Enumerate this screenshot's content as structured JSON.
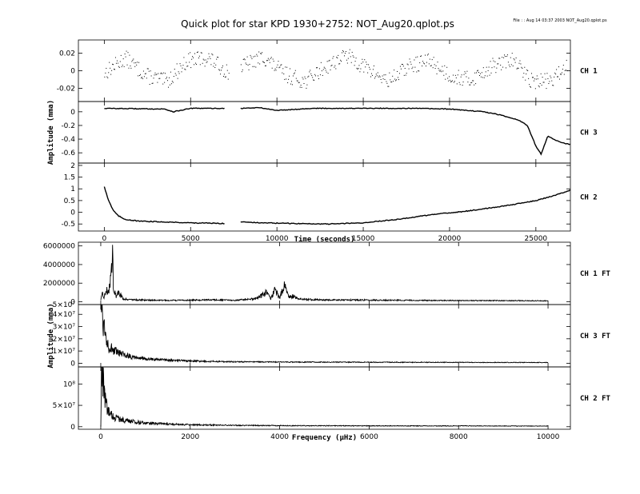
{
  "window": {
    "title": "Quick plot for star KPD 1930+2752:  NOT_Aug20.qplot.ps",
    "file_info": "File : : Aug 14 03:37 2003 NOT_Aug20.qplot.ps"
  },
  "colors": {
    "ink": "#000000",
    "background": "#ffffff"
  },
  "chart_data": [
    {
      "type": "scatter",
      "panel": "CH 1",
      "xlabel": "",
      "ylabel": "",
      "xlim": [
        -1500,
        27000
      ],
      "ylim": [
        -0.035,
        0.035
      ],
      "yticks": [
        -0.02,
        0,
        0.02
      ],
      "ytick_labels": [
        "-0.02",
        "0",
        "0.02"
      ],
      "series": [
        {
          "name": "CH 1",
          "segments": [
            {
              "x": [
                0,
                1200,
                2400,
                3600,
                4800,
                6000,
                7200
              ],
              "y": [
                -0.002,
                0.015,
                -0.005,
                -0.012,
                0.012,
                0.015,
                -0.002
              ]
            },
            {
              "x": [
                7900,
                9200,
                10400,
                11600,
                12800,
                14000,
                15200,
                16400,
                17600,
                18800,
                20000,
                21200,
                22400,
                23600,
                24800,
                26000,
                26800
              ],
              "y": [
                0.005,
                0.016,
                -0.003,
                -0.012,
                0.005,
                0.018,
                0.003,
                -0.012,
                0.005,
                0.012,
                -0.005,
                -0.01,
                0.005,
                0.013,
                -0.012,
                -0.01,
                0.008
              ]
            }
          ]
        }
      ]
    },
    {
      "type": "line",
      "panel": "CH 3",
      "xlabel": "",
      "ylabel": "Amplitude (mma)",
      "xlim": [
        -1500,
        27000
      ],
      "ylim": [
        -0.75,
        0.15
      ],
      "yticks": [
        -0.6,
        -0.4,
        -0.2,
        0
      ],
      "ytick_labels": [
        "-0.6",
        "-0.4",
        "-0.2",
        "0"
      ],
      "series": [
        {
          "name": "CH 3",
          "segments": [
            {
              "x": [
                0,
                3500,
                4000,
                5000,
                7000
              ],
              "y": [
                0.05,
                0.04,
                0.0,
                0.05,
                0.05
              ]
            },
            {
              "x": [
                7900,
                9000,
                10000,
                12000,
                14000,
                16000,
                18000,
                20000,
                22000,
                23000,
                24000,
                24500,
                25000,
                25300,
                25700,
                26000,
                26500,
                27000
              ],
              "y": [
                0.05,
                0.06,
                0.02,
                0.05,
                0.05,
                0.05,
                0.05,
                0.04,
                0.0,
                -0.05,
                -0.12,
                -0.2,
                -0.5,
                -0.62,
                -0.35,
                -0.4,
                -0.45,
                -0.48
              ]
            }
          ]
        }
      ]
    },
    {
      "type": "line",
      "panel": "CH 2",
      "xlabel": "Time (seconds)",
      "ylabel": "",
      "xlim": [
        -1500,
        27000
      ],
      "ylim": [
        -0.8,
        2.1
      ],
      "yticks": [
        -0.5,
        0,
        0.5,
        1,
        1.5,
        2
      ],
      "ytick_labels": [
        "-0.5",
        "0",
        "0.5",
        "1",
        "1.5",
        "2"
      ],
      "xticks": [
        0,
        5000,
        10000,
        15000,
        20000,
        25000
      ],
      "xtick_labels": [
        "0",
        "5000",
        "10000",
        "15000",
        "20000",
        "25000"
      ],
      "series": [
        {
          "name": "CH 2",
          "segments": [
            {
              "x": [
                0,
                200,
                500,
                800,
                1200,
                2000,
                3000,
                5000,
                7000
              ],
              "y": [
                1.1,
                0.6,
                0.1,
                -0.15,
                -0.3,
                -0.38,
                -0.4,
                -0.45,
                -0.48
              ]
            },
            {
              "x": [
                7900,
                9000,
                11000,
                13000,
                15000,
                17000,
                19000,
                21000,
                23000,
                25000,
                26000,
                27000
              ],
              "y": [
                -0.4,
                -0.45,
                -0.48,
                -0.5,
                -0.45,
                -0.3,
                -0.1,
                0.05,
                0.25,
                0.5,
                0.7,
                0.95
              ]
            }
          ]
        }
      ]
    },
    {
      "type": "line",
      "panel": "CH 1 FT",
      "xlabel": "",
      "ylabel": "",
      "xlim": [
        -500,
        10500
      ],
      "ylim": [
        -300000,
        6400000
      ],
      "yticks": [
        0,
        2000000,
        4000000,
        6000000
      ],
      "ytick_labels": [
        "0",
        "2000000",
        "4000000",
        "6000000"
      ],
      "series": [
        {
          "name": "CH 1 FT",
          "x": [
            0,
            40,
            80,
            120,
            160,
            200,
            240,
            260,
            280,
            320,
            360,
            400,
            500,
            800,
            1500,
            2500,
            3000,
            3500,
            3700,
            3800,
            3900,
            4000,
            4100,
            4200,
            4300,
            4400,
            4600,
            5000,
            6000,
            7000,
            8000,
            9000,
            10000
          ],
          "y": [
            200000,
            800000,
            500000,
            1300000,
            1000000,
            1800000,
            3000000,
            6000000,
            2000000,
            900000,
            500000,
            1100000,
            300000,
            200000,
            150000,
            200000,
            150000,
            350000,
            1000000,
            300000,
            1300000,
            400000,
            1800000,
            500000,
            600000,
            300000,
            250000,
            200000,
            180000,
            150000,
            130000,
            120000,
            100000
          ]
        }
      ]
    },
    {
      "type": "line",
      "panel": "CH 3 FT",
      "xlabel": "",
      "ylabel": "Amplitude (mma)",
      "xlim": [
        -500,
        10500
      ],
      "ylim": [
        -3000000,
        48000000
      ],
      "yticks": [
        0,
        10000000,
        20000000,
        30000000,
        40000000
      ],
      "ytick_labels": [
        "0",
        "1×10⁷",
        "2×10⁷",
        "3×10⁷",
        "4×10⁷"
      ],
      "top_tick_label": "5×10⁷",
      "series": [
        {
          "name": "CH 3 FT",
          "x": [
            0,
            30,
            60,
            100,
            150,
            200,
            300,
            400,
            600,
            800,
            1000,
            1500,
            2000,
            3000,
            4000,
            6000,
            8000,
            10000
          ],
          "y": [
            48000000,
            44000000,
            35000000,
            25000000,
            18000000,
            13000000,
            10000000,
            8000000,
            6000000,
            5000000,
            3500000,
            2500000,
            1800000,
            1200000,
            1000000,
            800000,
            700000,
            600000
          ]
        }
      ]
    },
    {
      "type": "line",
      "panel": "CH 2 FT",
      "xlabel": "Frequency (µHz)",
      "ylabel": "",
      "xlim": [
        -500,
        10500
      ],
      "ylim": [
        -6000000,
        140000000
      ],
      "yticks": [
        0,
        50000000,
        100000000
      ],
      "ytick_labels": [
        "0",
        "5×10⁷",
        "10⁸"
      ],
      "xticks": [
        0,
        2000,
        4000,
        6000,
        8000,
        10000
      ],
      "xtick_labels": [
        "0",
        "2000",
        "4000",
        "6000",
        "8000",
        "10000"
      ],
      "series": [
        {
          "name": "CH 2 FT",
          "x": [
            0,
            20,
            40,
            60,
            90,
            120,
            160,
            200,
            300,
            400,
            600,
            800,
            1000,
            1500,
            2000,
            3000,
            4000,
            6000,
            8000,
            10000
          ],
          "y": [
            0,
            140000000,
            130000000,
            100000000,
            70000000,
            50000000,
            38000000,
            30000000,
            22000000,
            18000000,
            14000000,
            11000000,
            9000000,
            6000000,
            4500000,
            3000000,
            2500000,
            2000000,
            1800000,
            1500000
          ]
        }
      ]
    }
  ]
}
